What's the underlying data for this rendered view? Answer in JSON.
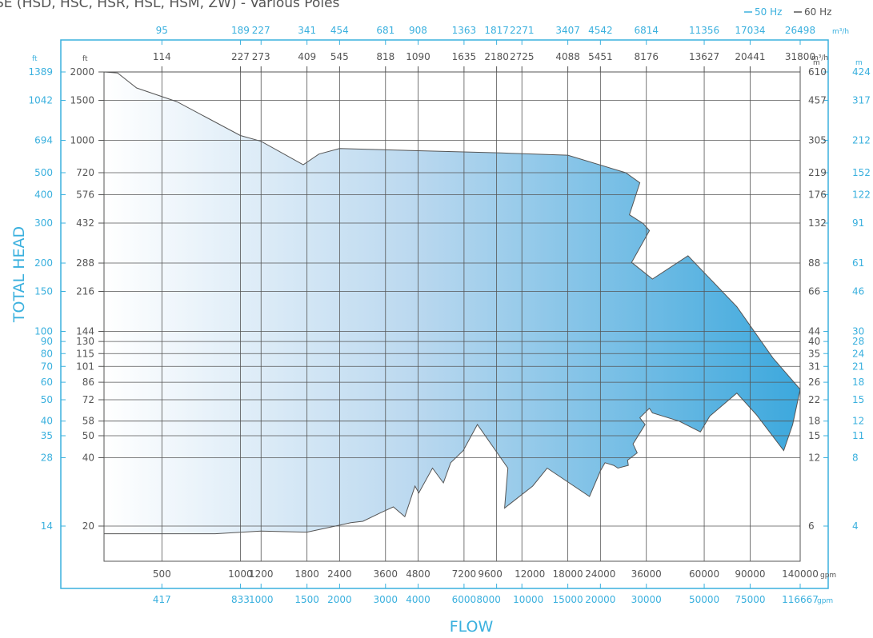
{
  "chart_data": {
    "type": "area",
    "title": "SE (HSD, HSC, HSR, HSL, HSM, ZW) - Various Poles",
    "legend": {
      "placement": "top-right",
      "entries": [
        {
          "label": "50 Hz",
          "color": "#3ab0de"
        },
        {
          "label": "60 Hz",
          "color": "#555555"
        }
      ]
    },
    "xlabel": "FLOW",
    "ylabel": "TOTAL HEAD",
    "x_scale": "log",
    "y_scale": "log",
    "grid": true,
    "x_axes": {
      "top_m3h_50hz": {
        "unit": "m³/h",
        "ticks": [
          "95",
          "189",
          "227",
          "341",
          "454",
          "681",
          "908",
          "1363",
          "1817",
          "2271",
          "3407",
          "4542",
          "6814",
          "11356",
          "17034",
          "26498"
        ]
      },
      "top_m3h_60hz": {
        "unit": "m³/h",
        "ticks": [
          "114",
          "227",
          "273",
          "409",
          "545",
          "818",
          "1090",
          "1635",
          "2180",
          "2725",
          "4088",
          "5451",
          "8176",
          "13627",
          "20441",
          "31800"
        ]
      },
      "bottom_gpm_60hz": {
        "unit": "gpm",
        "ticks": [
          "500",
          "1000",
          "1200",
          "1800",
          "2400",
          "3600",
          "4800",
          "7200",
          "9600",
          "12000",
          "18000",
          "24000",
          "36000",
          "60000",
          "90000",
          "140000"
        ]
      },
      "bottom_gpm_50hz": {
        "unit": "gpm",
        "ticks": [
          "417",
          "833",
          "1000",
          "1500",
          "2000",
          "3000",
          "4000",
          "6000",
          "8000",
          "10000",
          "15000",
          "20000",
          "30000",
          "50000",
          "75000",
          "116667"
        ]
      },
      "grid_gpm_60hz": [
        500,
        1000,
        1200,
        1800,
        2400,
        3600,
        4800,
        7200,
        9600,
        12000,
        18000,
        24000,
        36000,
        60000,
        90000,
        140000
      ],
      "range_gpm_60hz": [
        300,
        140000
      ]
    },
    "y_axes": {
      "left_ft_50hz": {
        "unit": "ft",
        "ticks": [
          "1389",
          "1042",
          "694",
          "500",
          "400",
          "300",
          "200",
          "150",
          "100",
          "90",
          "80",
          "70",
          "60",
          "50",
          "40",
          "35",
          "28",
          "14"
        ]
      },
      "left_ft_60hz": {
        "unit": "ft",
        "ticks": [
          "2000",
          "1500",
          "1000",
          "720",
          "576",
          "432",
          "288",
          "216",
          "144",
          "130",
          "115",
          "101",
          "86",
          "72",
          "58",
          "50",
          "40",
          "20"
        ]
      },
      "right_m_60hz": {
        "unit": "m",
        "ticks": [
          "610",
          "457",
          "305",
          "219",
          "176",
          "132",
          "88",
          "66",
          "44",
          "40",
          "35",
          "31",
          "26",
          "22",
          "18",
          "15",
          "12",
          "6"
        ]
      },
      "right_m_50hz": {
        "unit": "m",
        "ticks": [
          "424",
          "317",
          "212",
          "152",
          "122",
          "91",
          "61",
          "46",
          "30",
          "28",
          "24",
          "21",
          "18",
          "15",
          "12",
          "11",
          "8",
          "4"
        ]
      },
      "grid_ft_60hz": [
        2000,
        1500,
        1000,
        720,
        576,
        432,
        288,
        216,
        144,
        130,
        115,
        101,
        86,
        72,
        58,
        50,
        40,
        20
      ],
      "range_ft_60hz": [
        14,
        2000
      ]
    },
    "series": [
      {
        "x_unit": "gpm (60 Hz)",
        "y_unit": "ft (60 Hz)",
        "points": [
          [
            300,
            2000
          ],
          [
            338,
            1980
          ],
          [
            400,
            1700
          ],
          [
            570,
            1480
          ],
          [
            1000,
            1050
          ],
          [
            1200,
            990
          ],
          [
            1740,
            780
          ],
          [
            2000,
            870
          ],
          [
            2400,
            920
          ],
          [
            4800,
            900
          ],
          [
            10000,
            880
          ],
          [
            18000,
            860
          ],
          [
            30000,
            720
          ],
          [
            34000,
            650
          ],
          [
            31000,
            470
          ],
          [
            35000,
            430
          ],
          [
            37000,
            400
          ],
          [
            31600,
            290
          ],
          [
            38000,
            245
          ],
          [
            52000,
            310
          ],
          [
            80000,
            185
          ],
          [
            110000,
            110
          ],
          [
            140000,
            80
          ],
          [
            131000,
            56
          ],
          [
            121000,
            43
          ],
          [
            95000,
            62
          ],
          [
            80000,
            77
          ],
          [
            63000,
            61
          ],
          [
            58000,
            52
          ],
          [
            48000,
            58
          ],
          [
            38000,
            63
          ],
          [
            37000,
            66
          ],
          [
            34000,
            60
          ],
          [
            35600,
            56
          ],
          [
            32000,
            46
          ],
          [
            33200,
            42
          ],
          [
            30500,
            39
          ],
          [
            30700,
            37
          ],
          [
            28000,
            36
          ],
          [
            27000,
            37
          ],
          [
            25000,
            38
          ],
          [
            24000,
            35
          ],
          [
            21800,
            27
          ],
          [
            15000,
            36
          ],
          [
            13200,
            30
          ],
          [
            10300,
            24
          ],
          [
            10600,
            36
          ],
          [
            8100,
            56
          ],
          [
            7150,
            43
          ],
          [
            6400,
            38
          ],
          [
            6000,
            31
          ],
          [
            5450,
            36
          ],
          [
            4830,
            28
          ],
          [
            4670,
            30
          ],
          [
            4270,
            22
          ],
          [
            3860,
            24.3
          ],
          [
            3450,
            22.9
          ],
          [
            2950,
            21
          ],
          [
            2650,
            20.7
          ],
          [
            2500,
            20.4
          ],
          [
            2220,
            19.8
          ],
          [
            1800,
            18.8
          ],
          [
            1200,
            19.0
          ],
          [
            800,
            18.5
          ],
          [
            300,
            18.5
          ]
        ]
      }
    ]
  }
}
